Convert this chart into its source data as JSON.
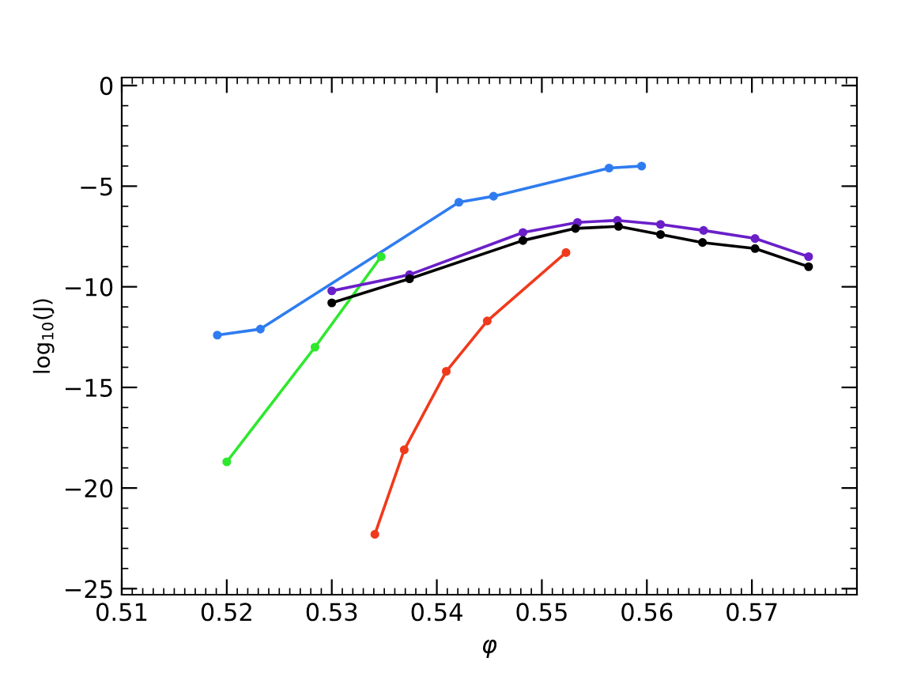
{
  "chart_data": {
    "type": "line",
    "xlabel": "φ",
    "ylabel": "log$_{10}$(J)",
    "xlim": [
      0.51,
      0.58
    ],
    "ylim": [
      -25.3,
      0.4
    ],
    "xticks": [
      0.51,
      0.52,
      0.53,
      0.54,
      0.55,
      0.56,
      0.57
    ],
    "yticks": [
      -25,
      -20,
      -15,
      -10,
      -5,
      0
    ],
    "grid": false,
    "legend": false,
    "marker": "circle",
    "line_style": "solid",
    "series": [
      {
        "color": "#2f7cf0",
        "x": [
          0.5191,
          0.5232,
          0.5421,
          0.5454,
          0.5564,
          0.5595
        ],
        "values": [
          -12.4,
          -12.1,
          -5.8,
          -5.5,
          -4.1,
          -4.0
        ]
      },
      {
        "color": "#2ee82e",
        "x": [
          0.52,
          0.5284,
          0.5347
        ],
        "values": [
          -18.7,
          -13.0,
          -8.5
        ]
      },
      {
        "color": "#f03a1c",
        "x": [
          0.5341,
          0.5369,
          0.5409,
          0.5448,
          0.5523
        ],
        "values": [
          -22.3,
          -18.1,
          -14.2,
          -11.7,
          -8.3
        ]
      },
      {
        "color": "#6a1fc8",
        "x": [
          0.53,
          0.5374,
          0.5482,
          0.5534,
          0.5572,
          0.5613,
          0.5654,
          0.5703,
          0.5754
        ],
        "values": [
          -10.2,
          -9.4,
          -7.3,
          -6.8,
          -6.7,
          -6.9,
          -7.2,
          -7.6,
          -8.5
        ]
      },
      {
        "color": "#000000",
        "x": [
          0.53,
          0.5374,
          0.5482,
          0.5532,
          0.5573,
          0.5613,
          0.5653,
          0.5703,
          0.5754
        ],
        "values": [
          -10.8,
          -9.6,
          -7.7,
          -7.1,
          -7.0,
          -7.4,
          -7.8,
          -8.1,
          -9.0
        ]
      }
    ]
  }
}
